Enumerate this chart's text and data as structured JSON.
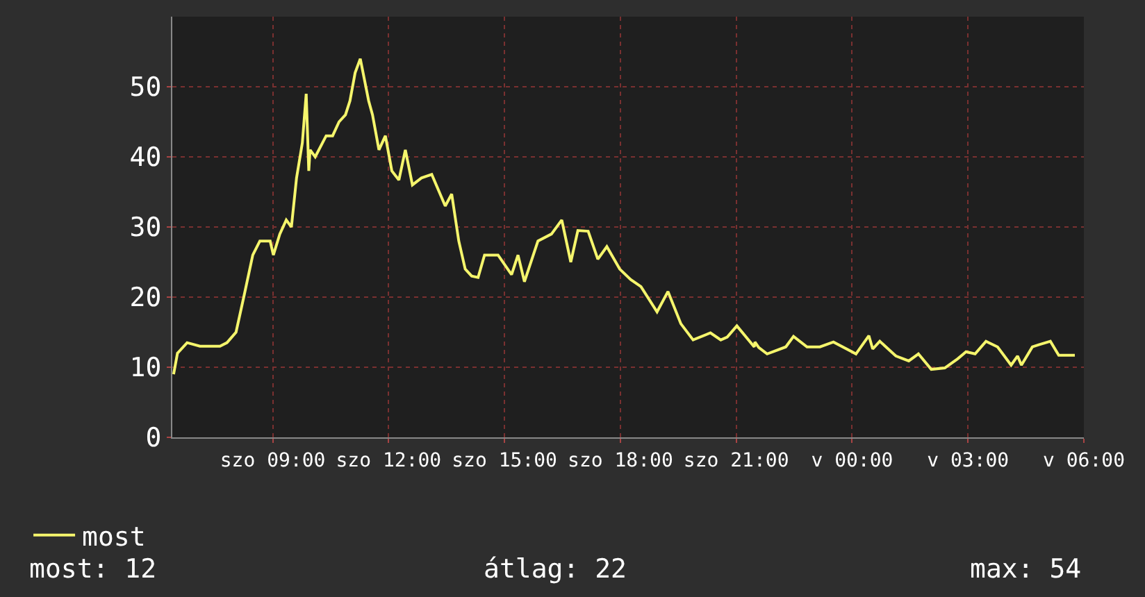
{
  "chart_data": {
    "type": "line",
    "x": [
      "--01-01T06:26",
      "--01-01T06:32",
      "--01-01T06:47",
      "--01-01T07:07",
      "--01-01T07:38",
      "--01-01T07:49",
      "--01-01T08:03",
      "--01-01T08:15",
      "--01-01T08:29",
      "--01-01T08:40",
      "--01-01T08:56",
      "--01-01T09:01",
      "--01-01T09:11",
      "--01-01T09:21",
      "--01-01T09:29",
      "--01-01T09:37",
      "--01-01T09:46",
      "--01-01T09:52",
      "--01-01T09:56",
      "--01-01T09:58",
      "--01-01T10:06",
      "--01-01T10:23",
      "--01-01T10:33",
      "--01-01T10:43",
      "--01-01T10:53",
      "--01-01T11:00",
      "--01-01T11:08",
      "--01-01T11:16",
      "--01-01T11:29",
      "--01-01T11:35",
      "--01-01T11:45",
      "--01-01T11:55",
      "--01-01T12:05",
      "--01-01T12:16",
      "--01-01T12:26",
      "--01-01T12:37",
      "--01-01T12:51",
      "--01-01T13:07",
      "--01-01T13:28",
      "--01-01T13:38",
      "--01-01T13:49",
      "--01-01T13:59",
      "--01-01T14:09",
      "--01-01T14:19",
      "--01-01T14:29",
      "--01-01T14:50",
      "--01-01T15:11",
      "--01-01T15:21",
      "--01-01T15:31",
      "--01-01T15:52",
      "--01-01T16:13",
      "--01-01T16:29",
      "--01-01T16:43",
      "--01-01T16:54",
      "--01-01T17:10",
      "--01-01T17:25",
      "--01-01T17:39",
      "--01-01T17:59",
      "--01-01T18:16",
      "--01-01T18:32",
      "--01-01T18:57",
      "--01-01T19:14",
      "--01-01T19:34",
      "--01-01T19:53",
      "--01-01T20:20",
      "--01-01T20:36",
      "--01-01T20:46",
      "--01-01T21:01",
      "--01-01T21:28",
      "--01-01T21:29",
      "--01-01T21:35",
      "--01-01T21:48",
      "--01-01T22:17",
      "--01-01T22:29",
      "--01-01T22:50",
      "--01-01T23:10",
      "--01-01T23:31",
      "--01-02T00:06",
      "--01-02T00:26",
      "--01-02T00:32",
      "--01-02T00:43",
      "--01-02T01:08",
      "--01-02T01:28",
      "--01-02T01:43",
      "--01-02T02:03",
      "--01-02T02:24",
      "--01-02T02:44",
      "--01-02T02:57",
      "--01-02T03:11",
      "--01-02T03:28",
      "--01-02T03:46",
      "--01-02T04:07",
      "--01-02T04:17",
      "--01-02T04:23",
      "--01-02T04:40",
      "--01-02T04:50",
      "--01-02T05:08",
      "--01-02T05:21",
      "--01-02T05:35",
      "--01-02T05:46"
    ],
    "series": [
      {
        "name": "most",
        "color": "#f5f56c",
        "values": [
          9,
          12,
          13.5,
          13,
          13,
          13.5,
          15,
          20,
          26,
          28,
          28,
          26,
          29,
          31,
          30,
          37,
          42,
          49,
          38,
          41,
          40,
          43,
          43,
          45,
          46,
          48,
          52,
          54,
          48,
          46,
          41,
          43,
          38,
          36.7,
          41,
          36,
          37,
          37.5,
          33,
          34.7,
          28,
          24,
          23,
          22.8,
          26,
          26,
          23.2,
          26,
          22.2,
          28,
          29,
          31,
          25,
          29.5,
          29.4,
          25.4,
          27.2,
          24,
          22.5,
          21.5,
          17.9,
          20.8,
          16.2,
          13.9,
          14.9,
          13.9,
          14.3,
          15.9,
          12.9,
          13.6,
          12.8,
          11.9,
          12.9,
          14.4,
          12.9,
          12.9,
          13.6,
          11.9,
          14.5,
          12.6,
          13.7,
          11.6,
          10.9,
          11.9,
          9.7,
          9.9,
          11.2,
          12.2,
          11.9,
          13.7,
          12.9,
          10.3,
          11.6,
          10.3,
          12.9,
          13.2,
          13.7,
          11.7,
          11.7,
          11.7
        ]
      }
    ],
    "xlim": [
      "--01-01T06:24",
      "--01-02T06:00"
    ],
    "ylim": [
      0,
      60
    ],
    "xticks": [
      {
        "value": "--01-01T09:00",
        "label": "szo 09:00"
      },
      {
        "value": "--01-01T12:00",
        "label": "szo 12:00"
      },
      {
        "value": "--01-01T15:00",
        "label": "szo 15:00"
      },
      {
        "value": "--01-01T18:00",
        "label": "szo 18:00"
      },
      {
        "value": "--01-01T21:00",
        "label": "szo 21:00"
      },
      {
        "value": "--01-02T00:00",
        "label": "v 00:00"
      },
      {
        "value": "--01-02T03:00",
        "label": "v 03:00"
      },
      {
        "value": "--01-02T06:00",
        "label": "v 06:00"
      }
    ],
    "yticks": [
      0,
      10,
      20,
      30,
      40,
      50
    ],
    "grid": true,
    "legend": "bottom left",
    "marker": "none",
    "line_style": "solid",
    "annotations": [
      "most: 12",
      "átlag: 22",
      "max: 54"
    ]
  }
}
